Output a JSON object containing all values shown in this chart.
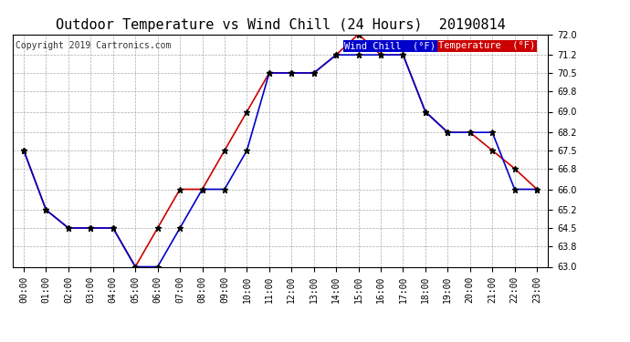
{
  "title": "Outdoor Temperature vs Wind Chill (24 Hours)  20190814",
  "copyright": "Copyright 2019 Cartronics.com",
  "background_color": "#ffffff",
  "plot_bg_color": "#ffffff",
  "grid_color": "#aaaaaa",
  "hours": [
    0,
    1,
    2,
    3,
    4,
    5,
    6,
    7,
    8,
    9,
    10,
    11,
    12,
    13,
    14,
    15,
    16,
    17,
    18,
    19,
    20,
    21,
    22,
    23
  ],
  "temperature": [
    67.5,
    65.2,
    64.5,
    64.5,
    64.5,
    63.0,
    64.5,
    66.0,
    66.0,
    67.5,
    69.0,
    70.5,
    70.5,
    70.5,
    71.2,
    72.0,
    71.2,
    71.2,
    69.0,
    68.2,
    68.2,
    67.5,
    66.8,
    66.0
  ],
  "wind_chill": [
    67.5,
    65.2,
    64.5,
    64.5,
    64.5,
    63.0,
    63.0,
    64.5,
    66.0,
    66.0,
    67.5,
    70.5,
    70.5,
    70.5,
    71.2,
    71.2,
    71.2,
    71.2,
    69.0,
    68.2,
    68.2,
    68.2,
    66.0,
    66.0
  ],
  "temp_color": "#cc0000",
  "wind_color": "#0000cc",
  "ylim": [
    63.0,
    72.0
  ],
  "yticks": [
    63.0,
    63.8,
    64.5,
    65.2,
    66.0,
    66.8,
    67.5,
    68.2,
    69.0,
    69.8,
    70.5,
    71.2,
    72.0
  ],
  "legend_wind_bg": "#0000cc",
  "legend_temp_bg": "#cc0000",
  "legend_text_color": "#ffffff",
  "marker": "*",
  "marker_size": 5,
  "linewidth": 1.2,
  "title_fontsize": 11,
  "tick_fontsize": 7,
  "copyright_fontsize": 7
}
